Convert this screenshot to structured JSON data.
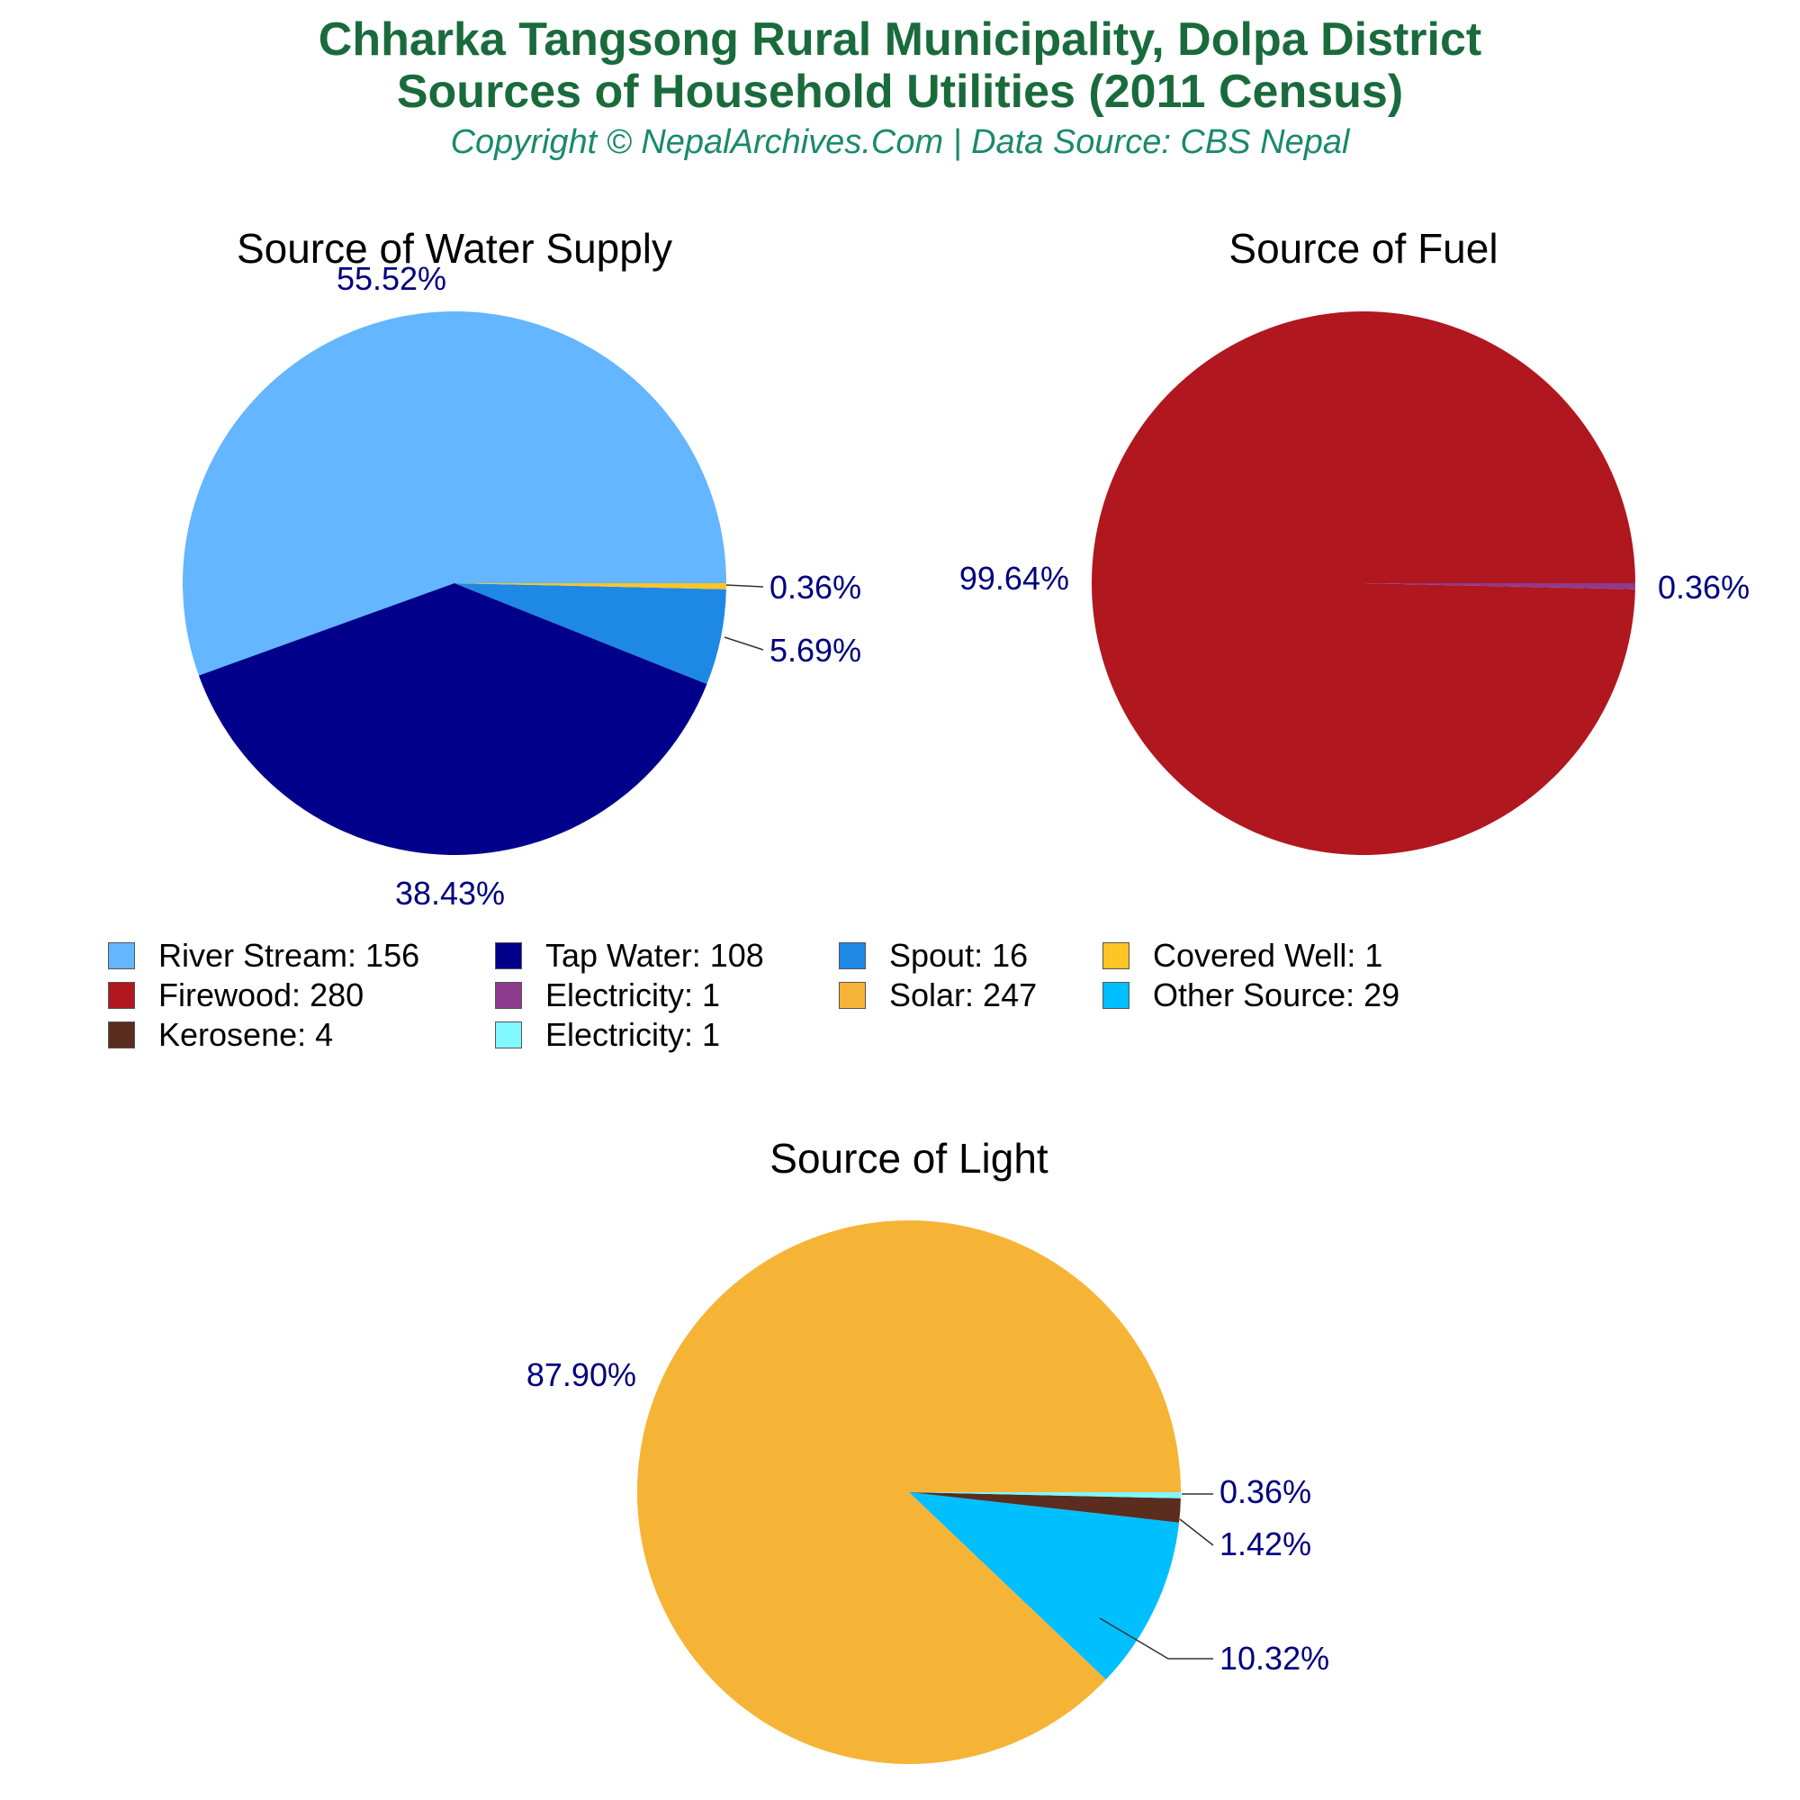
{
  "header": {
    "title_line1": "Chharka Tangsong Rural Municipality, Dolpa District",
    "title_line2": "Sources of Household Utilities (2011 Census)",
    "subtitle": "Copyright © NepalArchives.Com | Data Source: CBS Nepal"
  },
  "chart_data": [
    {
      "type": "pie",
      "title": "Source of Water Supply",
      "slices": [
        {
          "label": "River Stream",
          "value": 156,
          "percent_label": "55.52%",
          "color": "#63b6ff"
        },
        {
          "label": "Tap Water",
          "value": 108,
          "percent_label": "38.43%",
          "color": "#00008b"
        },
        {
          "label": "Spout",
          "value": 16,
          "percent_label": "5.69%",
          "color": "#1e88e5"
        },
        {
          "label": "Covered Well",
          "value": 1,
          "percent_label": "0.36%",
          "color": "#fcc425"
        }
      ]
    },
    {
      "type": "pie",
      "title": "Source of Fuel",
      "slices": [
        {
          "label": "Firewood",
          "value": 280,
          "percent_label": "99.64%",
          "color": "#b0171f"
        },
        {
          "label": "Electricity",
          "value": 1,
          "percent_label": "0.36%",
          "color": "#8e3a8f"
        }
      ]
    },
    {
      "type": "pie",
      "title": "Source of Light",
      "slices": [
        {
          "label": "Solar",
          "value": 247,
          "percent_label": "87.90%",
          "color": "#f6b437"
        },
        {
          "label": "Other Source",
          "value": 29,
          "percent_label": "10.32%",
          "color": "#00bfff"
        },
        {
          "label": "Kerosene",
          "value": 4,
          "percent_label": "1.42%",
          "color": "#5a2d1e"
        },
        {
          "label": "Electricity",
          "value": 1,
          "percent_label": "0.36%",
          "color": "#7ff8ff"
        }
      ]
    }
  ],
  "legend": {
    "placement": "middle",
    "items": [
      {
        "text": "River Stream: 156",
        "color": "#63b6ff"
      },
      {
        "text": "Tap Water: 108",
        "color": "#00008b"
      },
      {
        "text": "Spout: 16",
        "color": "#1e88e5"
      },
      {
        "text": "Covered Well: 1",
        "color": "#fcc425"
      },
      {
        "text": "Firewood: 280",
        "color": "#b0171f"
      },
      {
        "text": "Electricity: 1",
        "color": "#8e3a8f"
      },
      {
        "text": "Solar: 247",
        "color": "#f6b437"
      },
      {
        "text": "Other Source: 29",
        "color": "#00bfff"
      },
      {
        "text": "Kerosene: 4",
        "color": "#5a2d1e"
      },
      {
        "text": "Electricity: 1",
        "color": "#7ff8ff"
      }
    ]
  },
  "label_color": "#000080"
}
